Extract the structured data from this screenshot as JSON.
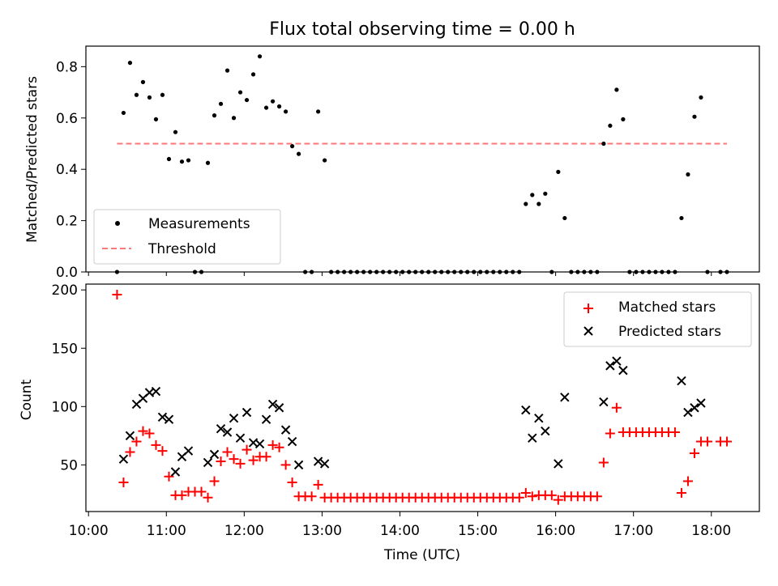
{
  "figure": {
    "title": "Flux total observing time = 0.00 h",
    "xlabel": "Time (UTC)"
  },
  "chart_data": [
    {
      "type": "scatter",
      "title": "Flux total observing time = 0.00 h",
      "xlabel": "",
      "ylabel": "Matched/Predicted stars",
      "xlim": [
        "09:58",
        "18:37"
      ],
      "ylim": [
        0,
        0.88
      ],
      "yticks": [
        "0.0",
        "0.2",
        "0.4",
        "0.6",
        "0.8"
      ],
      "legend_position": "lower left",
      "series": [
        {
          "name": "Measurements",
          "kind": "scatter",
          "marker": "dot",
          "color": "#000000",
          "points": [
            [
              "10:22",
              0.0
            ],
            [
              "10:27",
              0.62
            ],
            [
              "10:32",
              0.815
            ],
            [
              "10:37",
              0.69
            ],
            [
              "10:42",
              0.74
            ],
            [
              "10:47",
              0.68
            ],
            [
              "10:52",
              0.595
            ],
            [
              "10:57",
              0.69
            ],
            [
              "11:02",
              0.44
            ],
            [
              "11:07",
              0.545
            ],
            [
              "11:12",
              0.43
            ],
            [
              "11:17",
              0.435
            ],
            [
              "11:22",
              0.0
            ],
            [
              "11:27",
              0.0
            ],
            [
              "11:32",
              0.425
            ],
            [
              "11:37",
              0.61
            ],
            [
              "11:42",
              0.655
            ],
            [
              "11:47",
              0.785
            ],
            [
              "11:52",
              0.6
            ],
            [
              "11:57",
              0.7
            ],
            [
              "12:02",
              0.67
            ],
            [
              "12:07",
              0.77
            ],
            [
              "12:12",
              0.84
            ],
            [
              "12:17",
              0.64
            ],
            [
              "12:22",
              0.665
            ],
            [
              "12:27",
              0.645
            ],
            [
              "12:32",
              0.625
            ],
            [
              "12:37",
              0.49
            ],
            [
              "12:42",
              0.46
            ],
            [
              "12:47",
              0.0
            ],
            [
              "12:52",
              0.0
            ],
            [
              "12:57",
              0.625
            ],
            [
              "13:02",
              0.435
            ],
            [
              "13:07",
              0.0
            ],
            [
              "13:12",
              0.0
            ],
            [
              "13:17",
              0.0
            ],
            [
              "13:22",
              0.0
            ],
            [
              "13:27",
              0.0
            ],
            [
              "13:32",
              0.0
            ],
            [
              "13:37",
              0.0
            ],
            [
              "13:42",
              0.0
            ],
            [
              "13:47",
              0.0
            ],
            [
              "13:52",
              0.0
            ],
            [
              "13:57",
              0.0
            ],
            [
              "14:02",
              0.0
            ],
            [
              "14:07",
              0.0
            ],
            [
              "14:12",
              0.0
            ],
            [
              "14:17",
              0.0
            ],
            [
              "14:22",
              0.0
            ],
            [
              "14:27",
              0.0
            ],
            [
              "14:32",
              0.0
            ],
            [
              "14:37",
              0.0
            ],
            [
              "14:42",
              0.0
            ],
            [
              "14:47",
              0.0
            ],
            [
              "14:52",
              0.0
            ],
            [
              "14:57",
              0.0
            ],
            [
              "15:02",
              0.0
            ],
            [
              "15:07",
              0.0
            ],
            [
              "15:12",
              0.0
            ],
            [
              "15:17",
              0.0
            ],
            [
              "15:22",
              0.0
            ],
            [
              "15:27",
              0.0
            ],
            [
              "15:32",
              0.0
            ],
            [
              "15:37",
              0.265
            ],
            [
              "15:42",
              0.3
            ],
            [
              "15:47",
              0.265
            ],
            [
              "15:52",
              0.305
            ],
            [
              "15:57",
              0.0
            ],
            [
              "16:02",
              0.39
            ],
            [
              "16:07",
              0.21
            ],
            [
              "16:12",
              0.0
            ],
            [
              "16:17",
              0.0
            ],
            [
              "16:22",
              0.0
            ],
            [
              "16:27",
              0.0
            ],
            [
              "16:32",
              0.0
            ],
            [
              "16:37",
              0.5
            ],
            [
              "16:42",
              0.57
            ],
            [
              "16:47",
              0.71
            ],
            [
              "16:52",
              0.595
            ],
            [
              "16:57",
              0.0
            ],
            [
              "17:02",
              0.0
            ],
            [
              "17:07",
              0.0
            ],
            [
              "17:12",
              0.0
            ],
            [
              "17:17",
              0.0
            ],
            [
              "17:22",
              0.0
            ],
            [
              "17:27",
              0.0
            ],
            [
              "17:32",
              0.0
            ],
            [
              "17:37",
              0.21
            ],
            [
              "17:42",
              0.38
            ],
            [
              "17:47",
              0.605
            ],
            [
              "17:52",
              0.68
            ],
            [
              "17:57",
              0.0
            ],
            [
              "18:07",
              0.0
            ],
            [
              "18:12",
              0.0
            ]
          ]
        },
        {
          "name": "Threshold",
          "kind": "line",
          "style": "dashed",
          "color": "#ff7777",
          "points": [
            [
              "10:22",
              0.5
            ],
            [
              "18:12",
              0.5
            ]
          ]
        }
      ]
    },
    {
      "type": "scatter",
      "xlabel": "Time (UTC)",
      "ylabel": "Count",
      "xlim": [
        "09:58",
        "18:37"
      ],
      "ylim": [
        10,
        205
      ],
      "xticks": [
        "10:00",
        "11:00",
        "12:00",
        "13:00",
        "14:00",
        "15:00",
        "16:00",
        "17:00",
        "18:00"
      ],
      "yticks": [
        "50",
        "100",
        "150",
        "200"
      ],
      "legend_position": "upper right",
      "series": [
        {
          "name": "Matched stars",
          "kind": "scatter",
          "marker": "plus",
          "color": "#ff0000",
          "points": [
            [
              "10:22",
              196
            ],
            [
              "10:27",
              35
            ],
            [
              "10:32",
              61
            ],
            [
              "10:37",
              70
            ],
            [
              "10:42",
              79
            ],
            [
              "10:47",
              77
            ],
            [
              "10:52",
              67
            ],
            [
              "10:57",
              62
            ],
            [
              "11:02",
              40
            ],
            [
              "11:07",
              24
            ],
            [
              "11:12",
              24
            ],
            [
              "11:17",
              27
            ],
            [
              "11:22",
              27
            ],
            [
              "11:27",
              27
            ],
            [
              "11:32",
              22
            ],
            [
              "11:37",
              36
            ],
            [
              "11:42",
              53
            ],
            [
              "11:47",
              61
            ],
            [
              "11:52",
              55
            ],
            [
              "11:57",
              51
            ],
            [
              "12:02",
              63
            ],
            [
              "12:07",
              54
            ],
            [
              "12:12",
              57
            ],
            [
              "12:17",
              57
            ],
            [
              "12:22",
              67
            ],
            [
              "12:27",
              65
            ],
            [
              "12:32",
              50
            ],
            [
              "12:37",
              35
            ],
            [
              "12:42",
              23
            ],
            [
              "12:47",
              23
            ],
            [
              "12:52",
              23
            ],
            [
              "12:57",
              33
            ],
            [
              "13:02",
              22
            ],
            [
              "13:07",
              22
            ],
            [
              "13:12",
              22
            ],
            [
              "13:17",
              22
            ],
            [
              "13:22",
              22
            ],
            [
              "13:27",
              22
            ],
            [
              "13:32",
              22
            ],
            [
              "13:37",
              22
            ],
            [
              "13:42",
              22
            ],
            [
              "13:47",
              22
            ],
            [
              "13:52",
              22
            ],
            [
              "13:57",
              22
            ],
            [
              "14:02",
              22
            ],
            [
              "14:07",
              22
            ],
            [
              "14:12",
              22
            ],
            [
              "14:17",
              22
            ],
            [
              "14:22",
              22
            ],
            [
              "14:27",
              22
            ],
            [
              "14:32",
              22
            ],
            [
              "14:37",
              22
            ],
            [
              "14:42",
              22
            ],
            [
              "14:47",
              22
            ],
            [
              "14:52",
              22
            ],
            [
              "14:57",
              22
            ],
            [
              "15:02",
              22
            ],
            [
              "15:07",
              22
            ],
            [
              "15:12",
              22
            ],
            [
              "15:17",
              22
            ],
            [
              "15:22",
              22
            ],
            [
              "15:27",
              22
            ],
            [
              "15:32",
              22
            ],
            [
              "15:37",
              26
            ],
            [
              "15:42",
              23
            ],
            [
              "15:47",
              24
            ],
            [
              "15:52",
              24
            ],
            [
              "15:57",
              24
            ],
            [
              "16:02",
              20
            ],
            [
              "16:07",
              23
            ],
            [
              "16:12",
              23
            ],
            [
              "16:17",
              23
            ],
            [
              "16:22",
              23
            ],
            [
              "16:27",
              23
            ],
            [
              "16:32",
              23
            ],
            [
              "16:37",
              52
            ],
            [
              "16:42",
              77
            ],
            [
              "16:47",
              99
            ],
            [
              "16:52",
              78
            ],
            [
              "16:57",
              78
            ],
            [
              "17:02",
              78
            ],
            [
              "17:07",
              78
            ],
            [
              "17:12",
              78
            ],
            [
              "17:17",
              78
            ],
            [
              "17:22",
              78
            ],
            [
              "17:27",
              78
            ],
            [
              "17:32",
              78
            ],
            [
              "17:37",
              26
            ],
            [
              "17:42",
              36
            ],
            [
              "17:47",
              60
            ],
            [
              "17:52",
              70
            ],
            [
              "17:57",
              70
            ],
            [
              "18:07",
              70
            ],
            [
              "18:12",
              70
            ]
          ]
        },
        {
          "name": "Predicted stars",
          "kind": "scatter",
          "marker": "x",
          "color": "#000000",
          "points": [
            [
              "10:27",
              55
            ],
            [
              "10:32",
              75
            ],
            [
              "10:37",
              102
            ],
            [
              "10:42",
              107
            ],
            [
              "10:47",
              112
            ],
            [
              "10:52",
              113
            ],
            [
              "10:57",
              91
            ],
            [
              "11:02",
              89
            ],
            [
              "11:07",
              44
            ],
            [
              "11:12",
              57
            ],
            [
              "11:17",
              62
            ],
            [
              "11:32",
              52
            ],
            [
              "11:37",
              59
            ],
            [
              "11:42",
              81
            ],
            [
              "11:47",
              78
            ],
            [
              "11:52",
              90
            ],
            [
              "11:57",
              73
            ],
            [
              "12:02",
              95
            ],
            [
              "12:07",
              69
            ],
            [
              "12:12",
              68
            ],
            [
              "12:17",
              89
            ],
            [
              "12:22",
              102
            ],
            [
              "12:27",
              99
            ],
            [
              "12:32",
              80
            ],
            [
              "12:37",
              70
            ],
            [
              "12:42",
              50
            ],
            [
              "12:57",
              53
            ],
            [
              "13:02",
              51
            ],
            [
              "15:37",
              97
            ],
            [
              "15:42",
              73
            ],
            [
              "15:47",
              90
            ],
            [
              "15:52",
              79
            ],
            [
              "16:02",
              51
            ],
            [
              "16:07",
              108
            ],
            [
              "16:37",
              104
            ],
            [
              "16:42",
              135
            ],
            [
              "16:47",
              139
            ],
            [
              "16:52",
              131
            ],
            [
              "17:37",
              122
            ],
            [
              "17:42",
              95
            ],
            [
              "17:47",
              99
            ],
            [
              "17:52",
              103
            ]
          ]
        }
      ]
    }
  ]
}
